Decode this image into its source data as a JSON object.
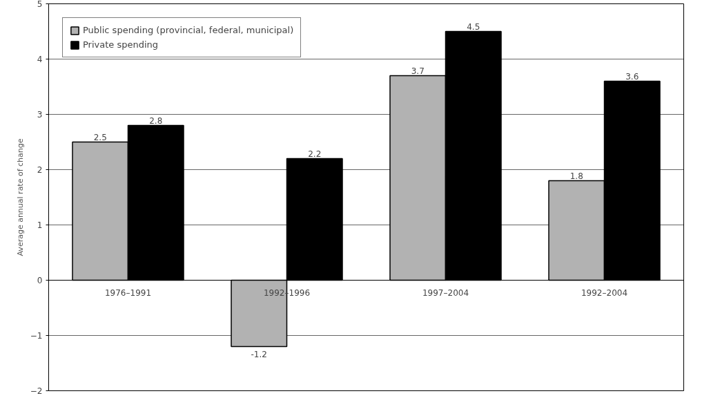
{
  "chart_data": {
    "type": "bar",
    "ylabel": "Average annual rate of change",
    "categories": [
      "1976–1991",
      "1992–1996",
      "1997–2004",
      "1992–2004"
    ],
    "series": [
      {
        "name": "Public spending (provincial, federal, municipal)",
        "color": "#b2b2b2",
        "values": [
          2.5,
          -1.2,
          3.7,
          1.8
        ]
      },
      {
        "name": "Private spending",
        "color": "#000000",
        "values": [
          2.8,
          2.2,
          4.5,
          3.6
        ]
      }
    ],
    "ylim": [
      -2,
      5
    ],
    "yticks": [
      -2,
      -1,
      0,
      1,
      2,
      3,
      4,
      5
    ],
    "grid": "y",
    "legend": "top left",
    "data_labels": true
  }
}
